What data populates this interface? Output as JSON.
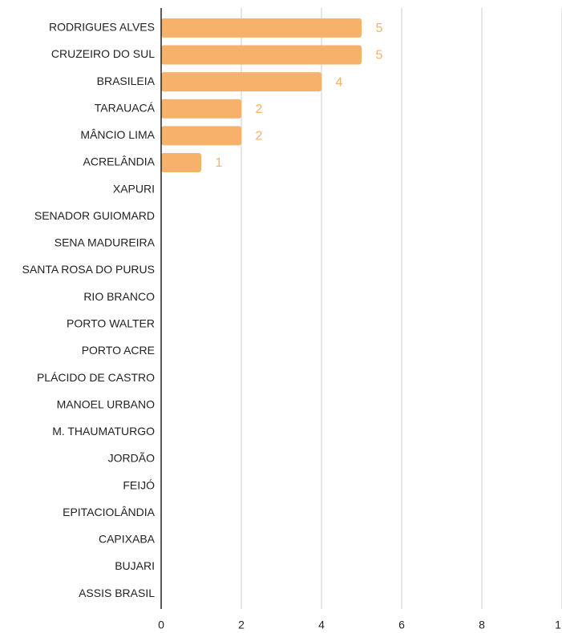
{
  "chart_data": {
    "type": "bar",
    "orientation": "horizontal",
    "categories": [
      "RODRIGUES ALVES",
      "CRUZEIRO DO SUL",
      "BRASILEIA",
      "TARAUACÁ",
      "MÂNCIO LIMA",
      "ACRELÂNDIA",
      "XAPURI",
      "SENADOR GUIOMARD",
      "SENA MADUREIRA",
      "SANTA ROSA DO PURUS",
      "RIO BRANCO",
      "PORTO WALTER",
      "PORTO ACRE",
      "PLÁCIDO DE CASTRO",
      "MANOEL URBANO",
      "M. THAUMATURGO",
      "JORDÃO",
      "FEIJÓ",
      "EPITACIOLÂNDIA",
      "CAPIXABA",
      "BUJARI",
      "ASSIS BRASIL"
    ],
    "values": [
      5,
      5,
      4,
      2,
      2,
      1,
      0,
      0,
      0,
      0,
      0,
      0,
      0,
      0,
      0,
      0,
      0,
      0,
      0,
      0,
      0,
      0
    ],
    "color": "#f6b26b",
    "xlim": [
      0,
      10
    ],
    "xticks": [
      0,
      2,
      4,
      6,
      8,
      {
        "value": 10,
        "label": "1"
      }
    ],
    "grid": true
  }
}
